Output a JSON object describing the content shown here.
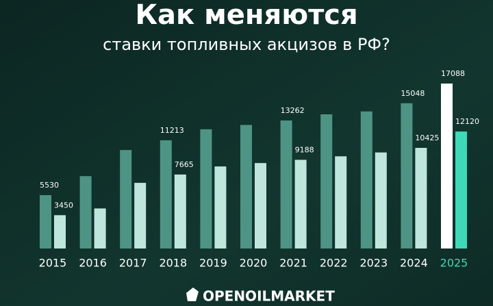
{
  "chart_data": {
    "type": "bar",
    "title": "Как меняются",
    "subtitle": "ставки топливных акцизов в РФ?",
    "brand": "OPENOILMARKET",
    "categories": [
      "2015",
      "2016",
      "2017",
      "2018",
      "2019",
      "2020",
      "2021",
      "2022",
      "2023",
      "2024",
      "2025"
    ],
    "category_label_colors": [
      "#ffffff",
      "#ffffff",
      "#ffffff",
      "#ffffff",
      "#ffffff",
      "#ffffff",
      "#ffffff",
      "#ffffff",
      "#ffffff",
      "#ffffff",
      "#3fd9b8"
    ],
    "series": [
      {
        "values": [
          5530,
          7500,
          10200,
          11213,
          12350,
          12800,
          13262,
          13900,
          14200,
          15048,
          17088
        ],
        "value_labels": [
          "5530",
          null,
          null,
          "11213",
          null,
          null,
          "13262",
          null,
          null,
          "15048",
          "17088"
        ],
        "colors": [
          "#4e9484",
          "#4e9484",
          "#4e9484",
          "#4e9484",
          "#4e9484",
          "#4e9484",
          "#4e9484",
          "#4e9484",
          "#4e9484",
          "#4e9484",
          "#ffffff"
        ]
      },
      {
        "values": [
          3450,
          4150,
          6800,
          7665,
          8500,
          8850,
          9188,
          9550,
          9950,
          10425,
          12120
        ],
        "value_labels": [
          "3450",
          null,
          null,
          "7665",
          null,
          null,
          "9188",
          null,
          null,
          "10425",
          "12120"
        ],
        "colors": [
          "#bfe6dc",
          "#bfe6dc",
          "#bfe6dc",
          "#bfe6dc",
          "#bfe6dc",
          "#bfe6dc",
          "#bfe6dc",
          "#bfe6dc",
          "#bfe6dc",
          "#bfe6dc",
          "#3fd9b8"
        ]
      }
    ],
    "ylim": [
      0,
      20000
    ]
  }
}
